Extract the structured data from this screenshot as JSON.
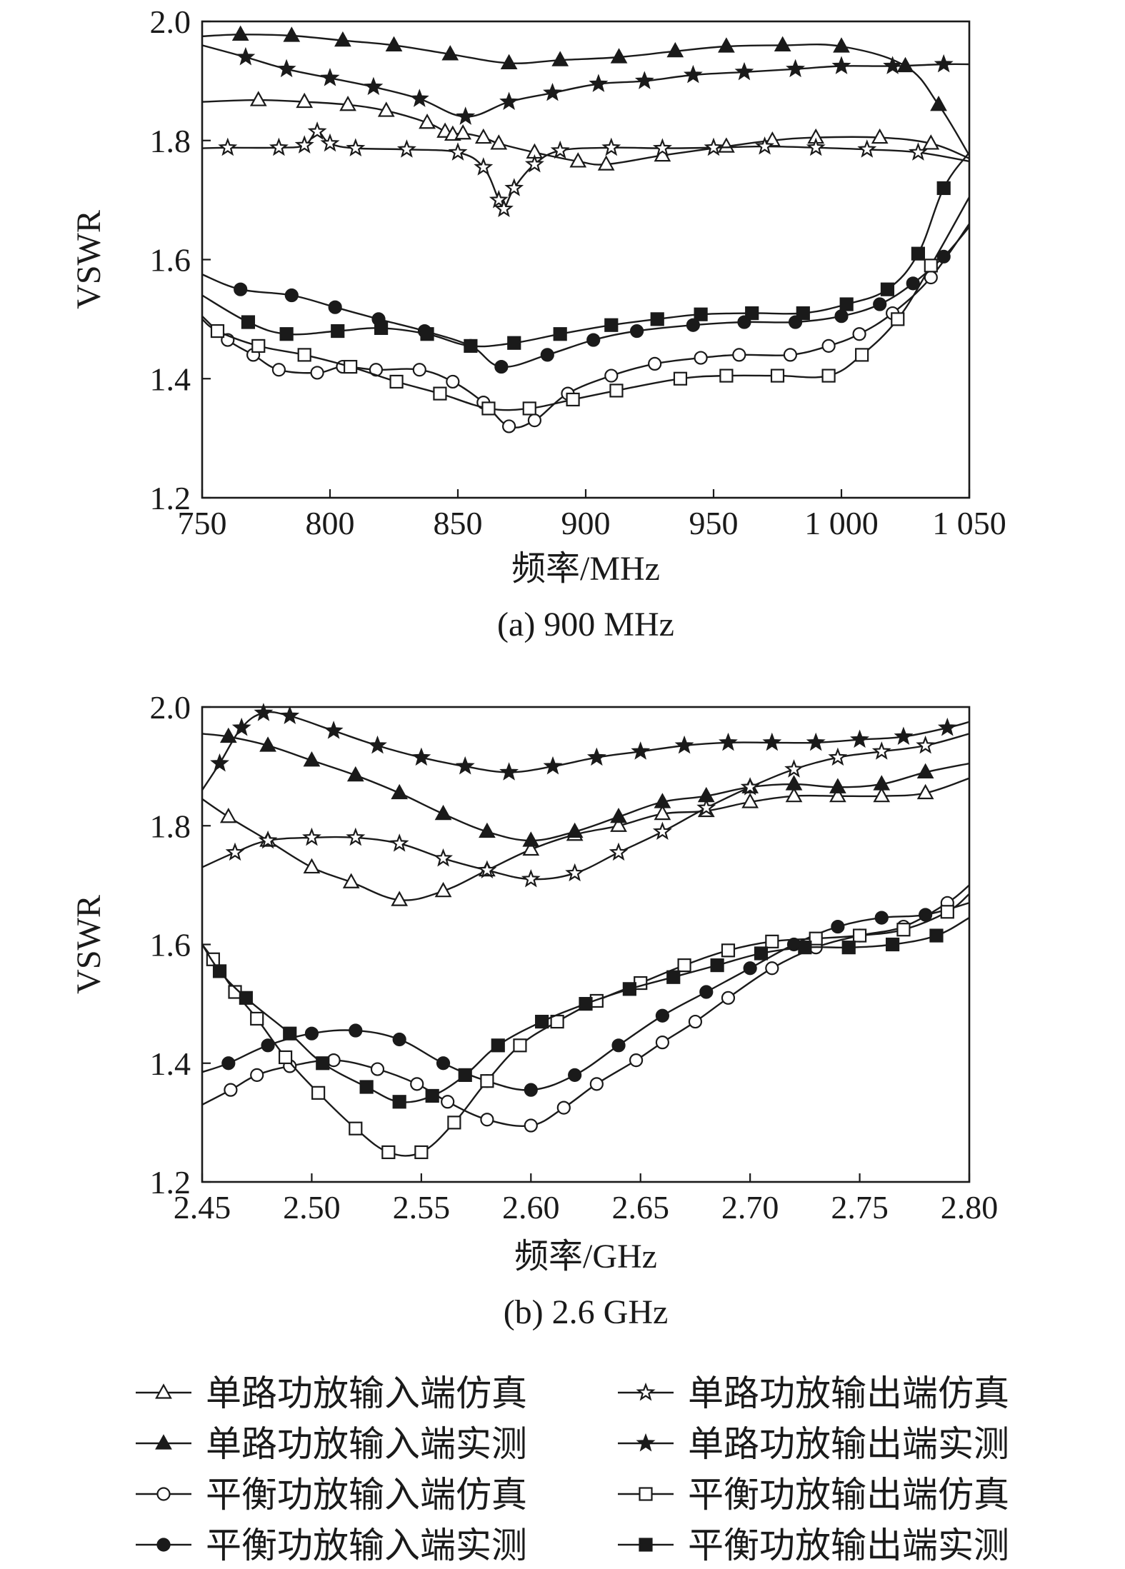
{
  "chart_data": [
    {
      "type": "line",
      "caption": "(a) 900 MHz",
      "xlabel": "频率/MHz",
      "ylabel": "VSWR",
      "xlim": [
        750,
        1050
      ],
      "ylim": [
        1.2,
        2.0
      ],
      "xticks": [
        750,
        800,
        850,
        900,
        950,
        1000,
        1050
      ],
      "xtick_labels": [
        "750",
        "800",
        "850",
        "900",
        "950",
        "1 000",
        "1 050"
      ],
      "yticks": [
        1.2,
        1.4,
        1.6,
        1.8,
        2.0
      ],
      "ytick_labels": [
        "1.2",
        "1.4",
        "1.6",
        "1.8",
        "2.0"
      ],
      "grid": false,
      "series": [
        {
          "name": "单路功放输入端仿真",
          "marker": "triangle-open",
          "x": [
            750,
            772,
            790,
            807,
            822,
            838,
            845,
            848,
            852,
            860,
            866,
            880,
            897,
            908,
            930,
            955,
            973,
            990,
            1015,
            1035,
            1050
          ],
          "y": [
            1.865,
            1.868,
            1.865,
            1.86,
            1.85,
            1.83,
            1.815,
            1.81,
            1.812,
            1.805,
            1.795,
            1.78,
            1.765,
            1.76,
            1.775,
            1.79,
            1.8,
            1.805,
            1.805,
            1.795,
            1.77
          ]
        },
        {
          "name": "单路功放输入端实测",
          "marker": "triangle-filled",
          "x": [
            750,
            765,
            785,
            805,
            825,
            847,
            870,
            890,
            913,
            935,
            955,
            977,
            1000,
            1025,
            1038,
            1050
          ],
          "y": [
            1.975,
            1.978,
            1.976,
            1.968,
            1.96,
            1.945,
            1.93,
            1.935,
            1.94,
            1.95,
            1.958,
            1.96,
            1.958,
            1.925,
            1.86,
            1.775
          ]
        },
        {
          "name": "平衡功放输入端仿真",
          "marker": "circle-open",
          "x": [
            750,
            760,
            770,
            780,
            795,
            805,
            818,
            835,
            848,
            860,
            870,
            880,
            893,
            910,
            927,
            945,
            960,
            980,
            995,
            1007,
            1020,
            1035,
            1050
          ],
          "y": [
            1.505,
            1.465,
            1.44,
            1.415,
            1.41,
            1.42,
            1.415,
            1.415,
            1.395,
            1.36,
            1.32,
            1.33,
            1.375,
            1.405,
            1.425,
            1.435,
            1.44,
            1.44,
            1.455,
            1.475,
            1.51,
            1.57,
            1.66
          ]
        },
        {
          "name": "平衡功放输入端实测",
          "marker": "circle-filled",
          "x": [
            750,
            765,
            785,
            802,
            819,
            837,
            855,
            867,
            885,
            903,
            920,
            942,
            962,
            982,
            1000,
            1015,
            1028,
            1040,
            1050
          ],
          "y": [
            1.575,
            1.55,
            1.54,
            1.52,
            1.5,
            1.48,
            1.455,
            1.42,
            1.44,
            1.465,
            1.48,
            1.49,
            1.495,
            1.495,
            1.505,
            1.525,
            1.56,
            1.605,
            1.655
          ]
        },
        {
          "name": "单路功放输出端仿真",
          "marker": "star-open",
          "x": [
            750,
            760,
            780,
            790,
            795,
            800,
            810,
            830,
            850,
            860,
            866,
            868,
            872,
            880,
            890,
            910,
            930,
            950,
            970,
            990,
            1010,
            1030,
            1050
          ],
          "y": [
            1.787,
            1.788,
            1.788,
            1.792,
            1.815,
            1.795,
            1.787,
            1.785,
            1.78,
            1.755,
            1.7,
            1.685,
            1.72,
            1.76,
            1.783,
            1.788,
            1.787,
            1.788,
            1.79,
            1.788,
            1.785,
            1.78,
            1.765
          ]
        },
        {
          "name": "单路功放输出端实测",
          "marker": "star-filled",
          "x": [
            750,
            767,
            783,
            800,
            817,
            835,
            853,
            870,
            887,
            905,
            923,
            942,
            962,
            982,
            1000,
            1020,
            1040,
            1050
          ],
          "y": [
            1.96,
            1.94,
            1.92,
            1.905,
            1.89,
            1.87,
            1.84,
            1.865,
            1.88,
            1.895,
            1.9,
            1.91,
            1.915,
            1.92,
            1.925,
            1.925,
            1.928,
            1.928
          ]
        },
        {
          "name": "平衡功放输出端仿真",
          "marker": "square-open",
          "x": [
            750,
            756,
            772,
            790,
            808,
            826,
            843,
            862,
            878,
            895,
            912,
            937,
            955,
            975,
            995,
            1008,
            1022,
            1035,
            1050
          ],
          "y": [
            1.5,
            1.48,
            1.455,
            1.44,
            1.42,
            1.395,
            1.375,
            1.35,
            1.35,
            1.365,
            1.38,
            1.4,
            1.405,
            1.405,
            1.405,
            1.44,
            1.5,
            1.59,
            1.705
          ]
        },
        {
          "name": "平衡功放输出端实测",
          "marker": "square-filled",
          "x": [
            750,
            768,
            783,
            803,
            820,
            838,
            855,
            872,
            890,
            910,
            928,
            945,
            965,
            985,
            1002,
            1018,
            1030,
            1040,
            1050
          ],
          "y": [
            1.54,
            1.495,
            1.475,
            1.48,
            1.485,
            1.475,
            1.455,
            1.46,
            1.475,
            1.49,
            1.5,
            1.508,
            1.51,
            1.51,
            1.525,
            1.55,
            1.61,
            1.72,
            1.78
          ]
        }
      ]
    },
    {
      "type": "line",
      "caption": "(b) 2.6 GHz",
      "xlabel": "频率/GHz",
      "ylabel": "VSWR",
      "xlim": [
        2.45,
        2.8
      ],
      "ylim": [
        1.2,
        2.0
      ],
      "xticks": [
        2.45,
        2.5,
        2.55,
        2.6,
        2.65,
        2.7,
        2.75,
        2.8
      ],
      "xtick_labels": [
        "2.45",
        "2.50",
        "2.55",
        "2.60",
        "2.65",
        "2.70",
        "2.75",
        "2.80"
      ],
      "yticks": [
        1.2,
        1.4,
        1.6,
        1.8,
        2.0
      ],
      "ytick_labels": [
        "1.2",
        "1.4",
        "1.6",
        "1.8",
        "2.0"
      ],
      "grid": false,
      "series": [
        {
          "name": "单路功放输入端仿真",
          "marker": "triangle-open",
          "x": [
            2.45,
            2.462,
            2.48,
            2.5,
            2.518,
            2.54,
            2.56,
            2.58,
            2.6,
            2.62,
            2.64,
            2.66,
            2.68,
            2.7,
            2.72,
            2.74,
            2.76,
            2.78,
            2.8
          ],
          "y": [
            1.845,
            1.815,
            1.775,
            1.73,
            1.705,
            1.675,
            1.69,
            1.725,
            1.76,
            1.785,
            1.8,
            1.82,
            1.825,
            1.84,
            1.85,
            1.85,
            1.85,
            1.855,
            1.88
          ]
        },
        {
          "name": "单路功放输入端实测",
          "marker": "triangle-filled",
          "x": [
            2.45,
            2.462,
            2.48,
            2.5,
            2.52,
            2.54,
            2.56,
            2.58,
            2.6,
            2.62,
            2.64,
            2.66,
            2.68,
            2.7,
            2.72,
            2.74,
            2.76,
            2.78,
            2.8
          ],
          "y": [
            1.955,
            1.95,
            1.935,
            1.91,
            1.885,
            1.855,
            1.82,
            1.79,
            1.775,
            1.79,
            1.815,
            1.84,
            1.85,
            1.865,
            1.87,
            1.865,
            1.87,
            1.89,
            1.905
          ]
        },
        {
          "name": "平衡功放输入端仿真",
          "marker": "circle-open",
          "x": [
            2.45,
            2.463,
            2.475,
            2.49,
            2.51,
            2.53,
            2.548,
            2.562,
            2.58,
            2.6,
            2.615,
            2.63,
            2.648,
            2.66,
            2.675,
            2.69,
            2.71,
            2.73,
            2.75,
            2.77,
            2.79,
            2.8
          ],
          "y": [
            1.33,
            1.355,
            1.38,
            1.395,
            1.405,
            1.39,
            1.365,
            1.335,
            1.305,
            1.295,
            1.325,
            1.365,
            1.405,
            1.435,
            1.47,
            1.51,
            1.56,
            1.595,
            1.615,
            1.63,
            1.67,
            1.7
          ]
        },
        {
          "name": "平衡功放输入端实测",
          "marker": "circle-filled",
          "x": [
            2.45,
            2.462,
            2.48,
            2.5,
            2.52,
            2.54,
            2.56,
            2.58,
            2.6,
            2.62,
            2.64,
            2.66,
            2.68,
            2.7,
            2.72,
            2.74,
            2.76,
            2.78,
            2.8
          ],
          "y": [
            1.385,
            1.4,
            1.43,
            1.45,
            1.455,
            1.44,
            1.4,
            1.37,
            1.355,
            1.38,
            1.43,
            1.48,
            1.52,
            1.56,
            1.6,
            1.63,
            1.645,
            1.65,
            1.67
          ]
        },
        {
          "name": "单路功放输出端仿真",
          "marker": "star-open",
          "x": [
            2.45,
            2.465,
            2.48,
            2.5,
            2.52,
            2.54,
            2.56,
            2.58,
            2.6,
            2.62,
            2.64,
            2.66,
            2.68,
            2.7,
            2.72,
            2.74,
            2.76,
            2.78,
            2.8
          ],
          "y": [
            1.73,
            1.755,
            1.775,
            1.78,
            1.78,
            1.77,
            1.745,
            1.725,
            1.71,
            1.72,
            1.755,
            1.79,
            1.83,
            1.865,
            1.895,
            1.915,
            1.925,
            1.935,
            1.955
          ]
        },
        {
          "name": "单路功放输出端实测",
          "marker": "star-filled",
          "x": [
            2.45,
            2.458,
            2.468,
            2.478,
            2.49,
            2.51,
            2.53,
            2.55,
            2.57,
            2.59,
            2.61,
            2.63,
            2.65,
            2.67,
            2.69,
            2.71,
            2.73,
            2.75,
            2.77,
            2.79,
            2.8
          ],
          "y": [
            1.86,
            1.905,
            1.965,
            1.99,
            1.985,
            1.96,
            1.935,
            1.915,
            1.9,
            1.89,
            1.9,
            1.915,
            1.925,
            1.935,
            1.94,
            1.94,
            1.94,
            1.945,
            1.95,
            1.965,
            1.975
          ]
        },
        {
          "name": "平衡功放输出端仿真",
          "marker": "square-open",
          "x": [
            2.45,
            2.455,
            2.465,
            2.475,
            2.488,
            2.503,
            2.52,
            2.535,
            2.55,
            2.565,
            2.58,
            2.595,
            2.612,
            2.63,
            2.65,
            2.67,
            2.69,
            2.71,
            2.73,
            2.75,
            2.77,
            2.79,
            2.8
          ],
          "y": [
            1.6,
            1.575,
            1.52,
            1.475,
            1.41,
            1.35,
            1.29,
            1.25,
            1.25,
            1.3,
            1.37,
            1.43,
            1.47,
            1.505,
            1.535,
            1.565,
            1.59,
            1.605,
            1.61,
            1.615,
            1.625,
            1.655,
            1.685
          ]
        },
        {
          "name": "平衡功放输出端实测",
          "marker": "square-filled",
          "x": [
            2.45,
            2.458,
            2.47,
            2.49,
            2.505,
            2.525,
            2.54,
            2.555,
            2.57,
            2.585,
            2.605,
            2.625,
            2.645,
            2.665,
            2.685,
            2.705,
            2.725,
            2.745,
            2.765,
            2.785,
            2.8
          ],
          "y": [
            1.6,
            1.555,
            1.51,
            1.45,
            1.4,
            1.36,
            1.335,
            1.345,
            1.38,
            1.43,
            1.47,
            1.5,
            1.525,
            1.545,
            1.565,
            1.585,
            1.595,
            1.595,
            1.6,
            1.615,
            1.645
          ]
        }
      ]
    }
  ],
  "legend": {
    "placement": "bottom",
    "items": [
      {
        "label": "单路功放输入端仿真",
        "marker": "triangle-open"
      },
      {
        "label": "单路功放输出端仿真",
        "marker": "star-open"
      },
      {
        "label": "单路功放输入端实测",
        "marker": "triangle-filled"
      },
      {
        "label": "单路功放输出端实测",
        "marker": "star-filled"
      },
      {
        "label": "平衡功放输入端仿真",
        "marker": "circle-open"
      },
      {
        "label": "平衡功放输出端仿真",
        "marker": "square-open"
      },
      {
        "label": "平衡功放输入端实测",
        "marker": "circle-filled"
      },
      {
        "label": "平衡功放输出端实测",
        "marker": "square-filled"
      }
    ]
  },
  "colors": {
    "line": "#1a1a1a",
    "background": "#ffffff"
  }
}
